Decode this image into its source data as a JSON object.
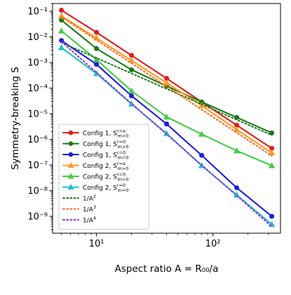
{
  "chart_data": {
    "type": "line",
    "xlabel": "Aspect ratio A = R₀₀/a",
    "ylabel": "Symmetry-breaking S",
    "xscale": "log",
    "yscale": "log",
    "xlim": [
      4.2,
      380
    ],
    "ylim": [
      2.2e-10,
      0.2
    ],
    "x_ticks": [
      10,
      100
    ],
    "x_tick_labels": [
      "10¹",
      "10²"
    ],
    "y_ticks": [
      1e-09,
      1e-08,
      1e-07,
      1e-06,
      1e-05,
      0.0001,
      0.001,
      0.01,
      0.1
    ],
    "y_tick_labels": [
      "10⁻⁹",
      "10⁻⁸",
      "10⁻⁷",
      "10⁻⁶",
      "10⁻⁵",
      "10⁻⁴",
      "10⁻³",
      "10⁻²",
      "10⁻¹"
    ],
    "grid": false,
    "legend_position": "lower-left",
    "x": [
      5,
      10,
      20,
      40,
      80,
      160,
      320
    ],
    "series": [
      {
        "name": "Config 1, S^{r=a}_{m>0}",
        "label_main": "Config 1, ",
        "label_sub": "m>0",
        "label_sup": "r=a",
        "color": "#e41a1c",
        "marker": "circle",
        "style": "solid",
        "values": [
          0.11,
          0.015,
          0.0019,
          0.00024,
          2.9e-05,
          3.6e-06,
          4.5e-07
        ]
      },
      {
        "name": "Config 1, S^{r=0}_{m>0}",
        "label_main": "Config 1, ",
        "label_sub": "m>0",
        "label_sup": "r=0",
        "color": "#1a7a1a",
        "marker": "circle",
        "style": "solid",
        "values": [
          0.045,
          0.0035,
          0.00052,
          0.00012,
          2.9e-05,
          7.2e-06,
          1.8e-06
        ]
      },
      {
        "name": "Config 1, S^{r=0}_{m=0}",
        "label_main": "Config 1, ",
        "label_sub": "m=0",
        "label_sup": "r=0",
        "color": "#1c1ce4",
        "marker": "circle",
        "style": "solid",
        "values": [
          0.0072,
          0.00085,
          5e-05,
          4e-06,
          2.4e-07,
          1.3e-08,
          1e-09
        ]
      },
      {
        "name": "Config 2, S^{r=a}_{m>0}",
        "label_main": "Config 2, ",
        "label_sub": "m>0",
        "label_sup": "r=a",
        "color": "#ff9a1f",
        "marker": "triangle",
        "style": "solid",
        "values": [
          0.065,
          0.009,
          0.0012,
          0.00016,
          2.1e-05,
          2.4e-06,
          3e-07
        ]
      },
      {
        "name": "Config 2, S^{r=0}_{m>0}",
        "label_main": "Config 2, ",
        "label_sub": "m>0",
        "label_sup": "r=0",
        "color": "#44cc44",
        "marker": "triangle",
        "style": "solid",
        "values": [
          0.017,
          0.0013,
          7.8e-05,
          7.5e-06,
          1.6e-06,
          3.6e-07,
          9.5e-08
        ]
      },
      {
        "name": "Config 2, S^{r=0}_{m=0}",
        "label_main": "Config 2, ",
        "label_sub": "m=0",
        "label_sup": "r=0",
        "color": "#1fbfc4",
        "marker": "triangle",
        "style": "solid",
        "values": [
          0.0038,
          0.00037,
          2.4e-05,
          1.7e-06,
          9.5e-08,
          6.8e-09,
          4.8e-10
        ]
      },
      {
        "name": "1/A^2",
        "label_main": "1/A",
        "label_sub": "",
        "label_sup": "2",
        "color": "#1a7a1a",
        "marker": "none",
        "style": "dotted",
        "values": [
          0.006,
          0.0015,
          0.000375,
          9.375e-05,
          2.34e-05,
          5.86e-06,
          1.46e-06
        ]
      },
      {
        "name": "1/A^3",
        "label_main": "1/A",
        "label_sub": "",
        "label_sup": "3",
        "color": "#ff6a1f",
        "marker": "none",
        "style": "dotted",
        "values": [
          0.06,
          0.0075,
          0.00094,
          0.000117,
          1.46e-05,
          1.83e-06,
          2.29e-07
        ]
      },
      {
        "name": "1/A^4",
        "label_main": "1/A",
        "label_sub": "",
        "label_sup": "4",
        "color": "#9933dd",
        "marker": "none",
        "style": "dotted",
        "values": [
          0.0065,
          0.00041,
          2.5e-05,
          1.6e-06,
          1e-07,
          6.4e-09,
          4e-10
        ]
      }
    ]
  }
}
